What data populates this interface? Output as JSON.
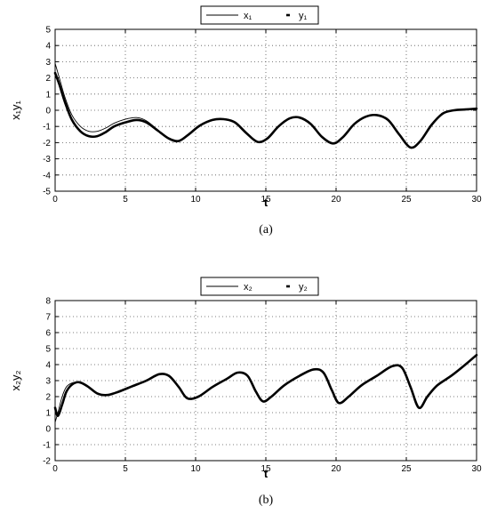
{
  "chart_data": [
    {
      "type": "line",
      "panel_label": "(a)",
      "xlabel": "t",
      "ylabel": "x₁y₁",
      "xlim": [
        0,
        30
      ],
      "ylim": [
        -5,
        5
      ],
      "xticks": [
        0,
        5,
        10,
        15,
        20,
        25,
        30
      ],
      "yticks": [
        -5,
        -4,
        -3,
        -2,
        -1,
        0,
        1,
        2,
        3,
        4,
        5
      ],
      "grid": true,
      "legend_position": "top-center",
      "series": [
        {
          "name": "x₁",
          "style": "thin-solid",
          "x": [
            0,
            0.3,
            0.7,
            1.2,
            1.8,
            2.4,
            3.0,
            3.6,
            4.2,
            5.0,
            5.8,
            6.5,
            7.3,
            8.1,
            8.8,
            9.5,
            10.3,
            11.2,
            12.0,
            12.8,
            13.6,
            14.4,
            15.1,
            15.9,
            16.7,
            17.4,
            18.2,
            19.0,
            19.8,
            20.5,
            21.3,
            22.1,
            22.9,
            23.7,
            24.5,
            25.3,
            26.0,
            26.8,
            27.6,
            28.4,
            29.2,
            30.0
          ],
          "y": [
            2.9,
            2.0,
            0.8,
            -0.3,
            -1.0,
            -1.3,
            -1.3,
            -1.1,
            -0.8,
            -0.55,
            -0.45,
            -0.65,
            -1.2,
            -1.75,
            -1.9,
            -1.5,
            -0.95,
            -0.6,
            -0.55,
            -0.75,
            -1.4,
            -1.95,
            -1.75,
            -1.0,
            -0.5,
            -0.45,
            -0.85,
            -1.65,
            -2.05,
            -1.65,
            -0.85,
            -0.4,
            -0.3,
            -0.6,
            -1.5,
            -2.3,
            -1.9,
            -0.9,
            -0.2,
            0.0,
            0.05,
            0.1
          ]
        },
        {
          "name": "y₁",
          "style": "thick-solid",
          "x": [
            0,
            0.3,
            0.7,
            1.2,
            1.8,
            2.4,
            3.0,
            3.6,
            4.2,
            5.0,
            5.8,
            6.5,
            7.3,
            8.1,
            8.8,
            9.5,
            10.3,
            11.2,
            12.0,
            12.8,
            13.6,
            14.4,
            15.1,
            15.9,
            16.7,
            17.4,
            18.2,
            19.0,
            19.8,
            20.5,
            21.3,
            22.1,
            22.9,
            23.7,
            24.5,
            25.3,
            26.0,
            26.8,
            27.6,
            28.4,
            29.2,
            30.0
          ],
          "y": [
            2.3,
            1.6,
            0.5,
            -0.6,
            -1.3,
            -1.6,
            -1.6,
            -1.35,
            -1.0,
            -0.75,
            -0.6,
            -0.75,
            -1.25,
            -1.75,
            -1.9,
            -1.5,
            -0.95,
            -0.6,
            -0.55,
            -0.75,
            -1.4,
            -1.95,
            -1.75,
            -1.0,
            -0.5,
            -0.45,
            -0.85,
            -1.65,
            -2.05,
            -1.65,
            -0.85,
            -0.4,
            -0.3,
            -0.6,
            -1.5,
            -2.3,
            -1.9,
            -0.9,
            -0.2,
            0.0,
            0.05,
            0.1
          ]
        }
      ]
    },
    {
      "type": "line",
      "panel_label": "(b)",
      "xlabel": "t",
      "ylabel": "x₂y₂",
      "xlim": [
        0,
        30
      ],
      "ylim": [
        -2,
        8
      ],
      "xticks": [
        0,
        5,
        10,
        15,
        20,
        25,
        30
      ],
      "yticks": [
        -2,
        -1,
        0,
        1,
        2,
        3,
        4,
        5,
        6,
        7,
        8
      ],
      "grid": true,
      "legend_position": "top-center",
      "series": [
        {
          "name": "x₂",
          "style": "thin-solid",
          "x": [
            0,
            0.2,
            0.5,
            0.8,
            1.2,
            1.7,
            2.3,
            3.0,
            3.7,
            4.5,
            5.5,
            6.5,
            7.4,
            8.1,
            8.8,
            9.4,
            10.2,
            11.2,
            12.2,
            13.0,
            13.7,
            14.3,
            14.8,
            15.4,
            16.3,
            17.4,
            18.4,
            19.1,
            19.7,
            20.2,
            20.9,
            21.8,
            22.9,
            24.0,
            24.7,
            25.3,
            25.9,
            26.5,
            27.2,
            28.2,
            29.2,
            30.0
          ],
          "y": [
            0.4,
            1.0,
            2.0,
            2.6,
            2.85,
            2.9,
            2.6,
            2.2,
            2.1,
            2.3,
            2.65,
            3.0,
            3.4,
            3.3,
            2.6,
            1.9,
            2.0,
            2.6,
            3.1,
            3.5,
            3.3,
            2.3,
            1.7,
            2.0,
            2.7,
            3.3,
            3.7,
            3.5,
            2.4,
            1.6,
            2.0,
            2.7,
            3.3,
            3.9,
            3.8,
            2.6,
            1.3,
            2.0,
            2.7,
            3.3,
            4.0,
            4.6
          ]
        },
        {
          "name": "y₂",
          "style": "thick-solid",
          "x": [
            0,
            0.2,
            0.5,
            0.8,
            1.2,
            1.7,
            2.3,
            3.0,
            3.7,
            4.5,
            5.5,
            6.5,
            7.4,
            8.1,
            8.8,
            9.4,
            10.2,
            11.2,
            12.2,
            13.0,
            13.7,
            14.3,
            14.8,
            15.4,
            16.3,
            17.4,
            18.4,
            19.1,
            19.7,
            20.2,
            20.9,
            21.8,
            22.9,
            24.0,
            24.7,
            25.3,
            25.9,
            26.5,
            27.2,
            28.2,
            29.2,
            30.0
          ],
          "y": [
            1.3,
            0.8,
            1.5,
            2.3,
            2.75,
            2.9,
            2.65,
            2.2,
            2.1,
            2.3,
            2.65,
            3.0,
            3.4,
            3.3,
            2.6,
            1.9,
            2.0,
            2.6,
            3.1,
            3.5,
            3.3,
            2.3,
            1.7,
            2.0,
            2.7,
            3.3,
            3.7,
            3.5,
            2.4,
            1.6,
            2.0,
            2.7,
            3.3,
            3.9,
            3.8,
            2.6,
            1.3,
            2.0,
            2.7,
            3.3,
            4.0,
            4.6
          ]
        }
      ]
    }
  ]
}
